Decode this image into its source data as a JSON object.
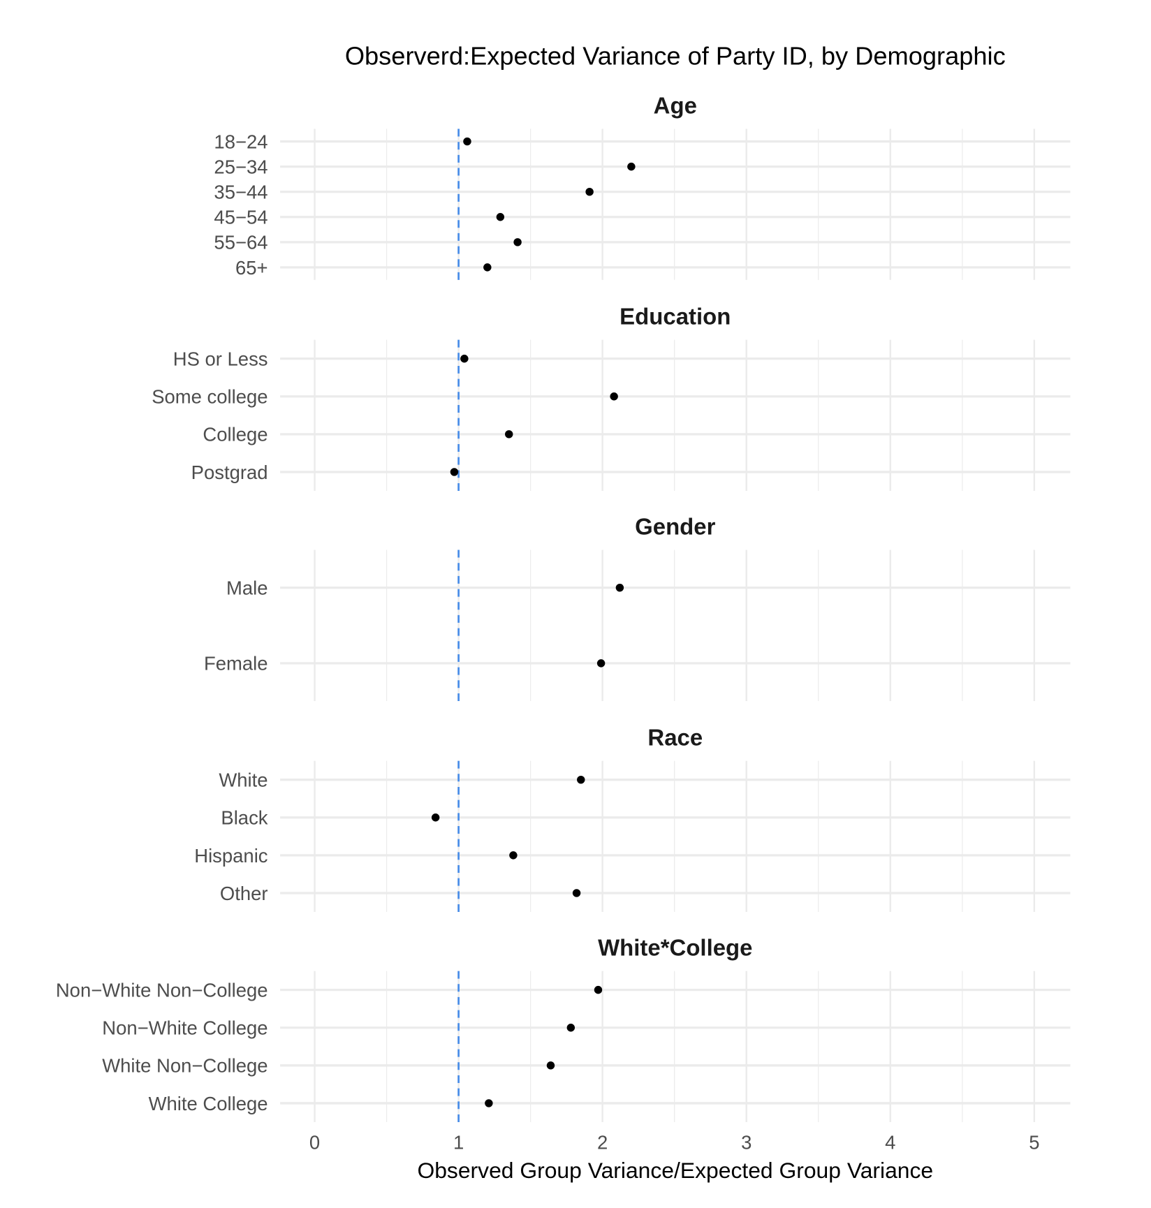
{
  "chart_data": {
    "type": "scatter",
    "title": "Observerd:Expected Variance of Party ID, by Demographic",
    "xlabel": "Observed Group Variance/Expected Group Variance",
    "xlim": [
      0,
      5
    ],
    "xticks": [
      "0",
      "1",
      "2",
      "3",
      "4",
      "5"
    ],
    "reference_line": {
      "x": 1,
      "style": "dashed",
      "color": "#4a8ee8"
    },
    "grid": true,
    "point_color": "#000000",
    "panels": [
      {
        "name": "Age",
        "categories": [
          "18−24",
          "25−34",
          "35−44",
          "45−54",
          "55−64",
          "65+"
        ],
        "values": [
          1.06,
          2.2,
          1.91,
          1.29,
          1.41,
          1.2
        ]
      },
      {
        "name": "Education",
        "categories": [
          "HS or Less",
          "Some college",
          "College",
          "Postgrad"
        ],
        "values": [
          1.04,
          2.08,
          1.35,
          0.97
        ]
      },
      {
        "name": "Gender",
        "categories": [
          "Male",
          "Female"
        ],
        "values": [
          2.12,
          1.99
        ]
      },
      {
        "name": "Race",
        "categories": [
          "White",
          "Black",
          "Hispanic",
          "Other"
        ],
        "values": [
          1.85,
          0.84,
          1.38,
          1.82
        ]
      },
      {
        "name": "White*College",
        "categories": [
          "Non−White Non−College",
          "Non−White College",
          "White Non−College",
          "White College"
        ],
        "values": [
          1.97,
          1.78,
          1.64,
          1.21
        ]
      }
    ]
  }
}
